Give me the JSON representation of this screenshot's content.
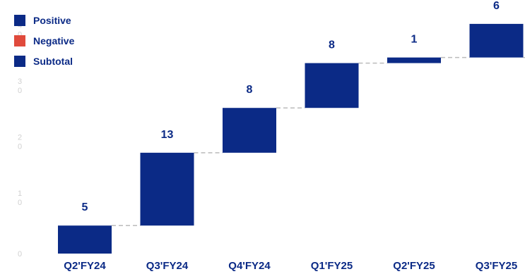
{
  "chart_data": {
    "type": "waterfall",
    "categories": [
      "Q2'FY24",
      "Q3'FY24",
      "Q4'FY24",
      "Q1'FY25",
      "Q2'FY25",
      "Q3'FY25"
    ],
    "values": [
      5,
      13,
      8,
      8,
      1,
      6
    ],
    "labels": [
      "5",
      "13",
      "8",
      "8",
      "1",
      "6"
    ],
    "kinds": [
      "positive",
      "positive",
      "positive",
      "positive",
      "positive",
      "positive"
    ],
    "ylim": [
      0,
      43
    ],
    "yticks": [
      0,
      10,
      20,
      30,
      40
    ],
    "ytick_labels": [
      "0",
      "1\n0",
      "2\n0",
      "3\n0",
      "4\n0"
    ],
    "legend_position": "top-left",
    "grid": false,
    "connectors": "dashed"
  },
  "legend": [
    {
      "name": "Positive",
      "color": "#0b2a86"
    },
    {
      "name": "Negative",
      "color": "#e04a3c"
    },
    {
      "name": "Subtotal",
      "color": "#0b2a86"
    }
  ],
  "colors": {
    "positive": "#0b2a86",
    "negative": "#e04a3c",
    "subtotal": "#0b2a86",
    "connector": "#bbbbbb",
    "axis_text": "#d0d0d0"
  }
}
